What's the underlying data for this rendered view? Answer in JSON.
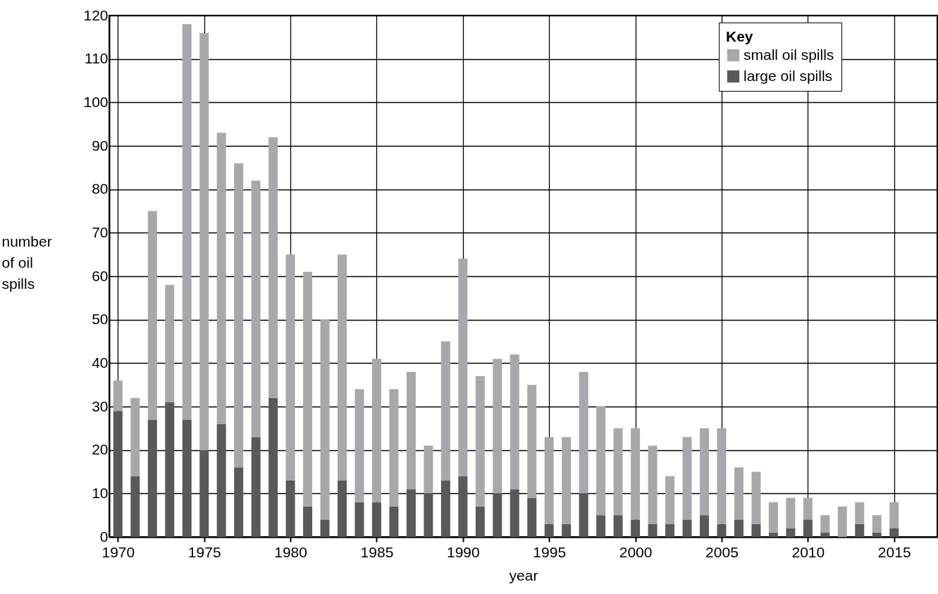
{
  "chart_data": {
    "type": "bar",
    "stacked": true,
    "xlabel": "year",
    "ylabel": "number of oil spills",
    "legend_title": "Key",
    "legend": "top right",
    "grid": true,
    "x": [
      1970,
      1971,
      1972,
      1973,
      1974,
      1975,
      1976,
      1977,
      1978,
      1979,
      1980,
      1981,
      1982,
      1983,
      1984,
      1985,
      1986,
      1987,
      1988,
      1989,
      1990,
      1991,
      1992,
      1993,
      1994,
      1995,
      1996,
      1997,
      1998,
      1999,
      2000,
      2001,
      2002,
      2003,
      2004,
      2005,
      2006,
      2007,
      2008,
      2009,
      2010,
      2011,
      2012,
      2013,
      2014,
      2015
    ],
    "xlim": [
      1969.7,
      2017.3
    ],
    "xticks": [
      1970,
      1975,
      1980,
      1985,
      1990,
      1995,
      2000,
      2005,
      2010,
      2015
    ],
    "ylim": [
      0,
      120
    ],
    "yticks": [
      0,
      10,
      20,
      30,
      40,
      50,
      60,
      70,
      80,
      90,
      100,
      110,
      120
    ],
    "series": [
      {
        "name": "large oil spills",
        "color": "#58595b",
        "values": [
          29,
          14,
          27,
          31,
          27,
          20,
          26,
          16,
          23,
          32,
          13,
          7,
          4,
          13,
          8,
          8,
          7,
          11,
          10,
          13,
          14,
          7,
          10,
          11,
          9,
          3,
          3,
          10,
          5,
          5,
          4,
          3,
          3,
          4,
          5,
          3,
          4,
          3,
          1,
          2,
          4,
          1,
          0,
          3,
          1,
          2
        ]
      },
      {
        "name": "small oil spills",
        "color": "#a7a8ac",
        "values": [
          7,
          18,
          48,
          27,
          91,
          96,
          67,
          70,
          59,
          60,
          52,
          54,
          46,
          52,
          26,
          33,
          27,
          27,
          11,
          32,
          50,
          30,
          31,
          31,
          26,
          20,
          20,
          28,
          25,
          20,
          21,
          18,
          11,
          19,
          20,
          22,
          12,
          12,
          7,
          7,
          5,
          4,
          7,
          5,
          4,
          6
        ]
      }
    ]
  }
}
